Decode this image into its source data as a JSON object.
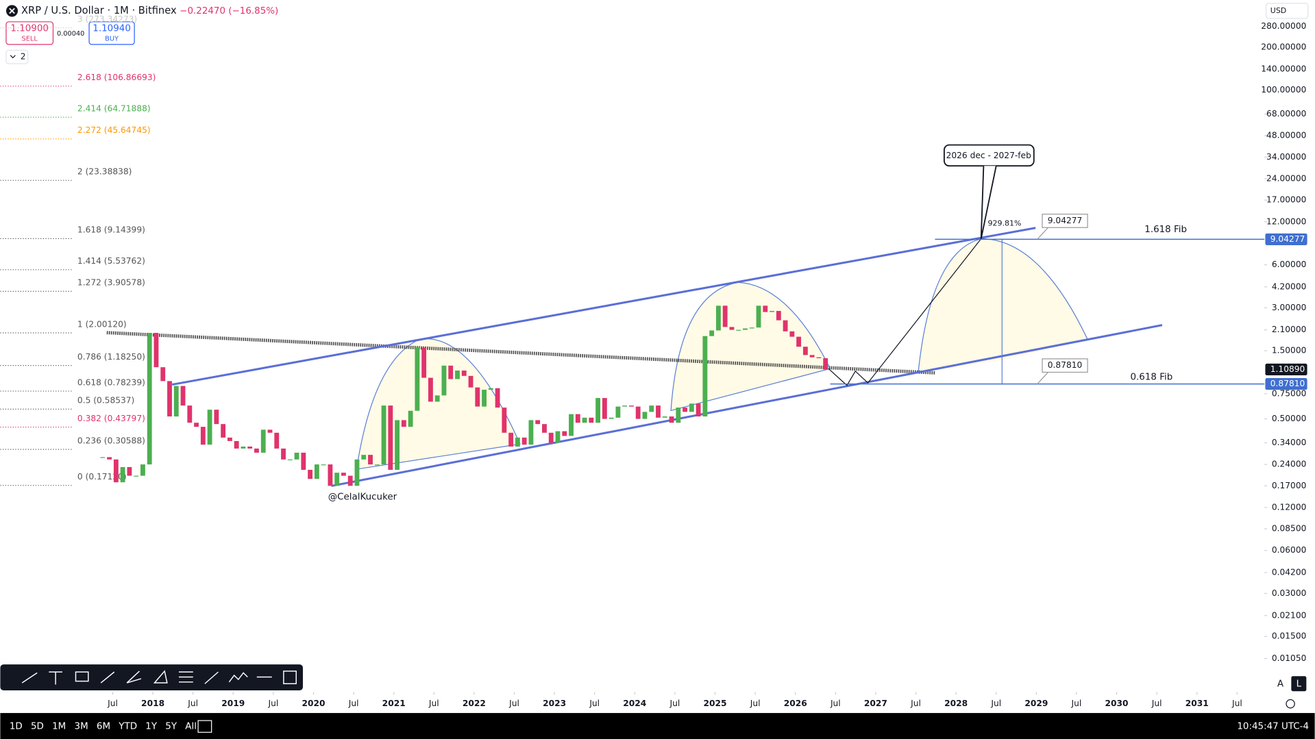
{
  "header": {
    "symbol": "XRP / U.S. Dollar · 1M · Bitfinex",
    "change": "−0.22470 (−16.85%)",
    "sell_price": "1.10900",
    "sell_label": "SELL",
    "spread": "0.00040",
    "buy_price": "1.10940",
    "buy_label": "BUY",
    "indicator_count": "2",
    "currency": "USD"
  },
  "chart_data": {
    "type": "candlestick",
    "log_scale": true,
    "up_color": "#4caf50",
    "down_color": "#e0336b",
    "x": [
      "2017-05",
      "2017-06",
      "2017-07",
      "2017-08",
      "2017-09",
      "2017-10",
      "2017-11",
      "2017-12",
      "2018-01",
      "2018-02",
      "2018-03",
      "2018-04",
      "2018-05",
      "2018-06",
      "2018-07",
      "2018-08",
      "2018-09",
      "2018-10",
      "2018-11",
      "2018-12",
      "2019-01",
      "2019-02",
      "2019-03",
      "2019-04",
      "2019-05",
      "2019-06",
      "2019-07",
      "2019-08",
      "2019-09",
      "2019-10",
      "2019-11",
      "2019-12",
      "2020-01",
      "2020-02",
      "2020-03",
      "2020-04",
      "2020-05",
      "2020-06",
      "2020-07",
      "2020-08",
      "2020-09",
      "2020-10",
      "2020-11",
      "2020-12",
      "2021-01",
      "2021-02",
      "2021-03",
      "2021-04",
      "2021-05",
      "2021-06",
      "2021-07",
      "2021-08",
      "2021-09",
      "2021-10",
      "2021-11",
      "2021-12",
      "2022-01",
      "2022-02",
      "2022-03",
      "2022-04",
      "2022-05",
      "2022-06",
      "2022-07",
      "2022-08",
      "2022-09",
      "2022-10",
      "2022-11",
      "2022-12",
      "2023-01",
      "2023-02",
      "2023-03",
      "2023-04",
      "2023-05",
      "2023-06",
      "2023-07",
      "2023-08",
      "2023-09",
      "2023-10",
      "2023-11",
      "2023-12",
      "2024-01",
      "2024-02",
      "2024-03",
      "2024-04",
      "2024-05",
      "2024-06",
      "2024-07",
      "2024-08",
      "2024-09",
      "2024-10",
      "2024-11",
      "2024-12",
      "2025-01",
      "2025-02",
      "2025-03",
      "2025-04",
      "2025-05",
      "2025-06",
      "2025-07",
      "2025-08",
      "2025-09",
      "2025-10",
      "2025-11",
      "2025-12",
      "2026-01",
      "2026-02",
      "2026-03",
      "2026-04",
      "2026-05"
    ],
    "close": [
      0.27,
      0.26,
      0.18,
      0.23,
      0.2,
      0.2,
      0.24,
      2.0,
      1.15,
      0.92,
      0.52,
      0.85,
      0.62,
      0.47,
      0.44,
      0.33,
      0.58,
      0.46,
      0.37,
      0.35,
      0.31,
      0.32,
      0.31,
      0.29,
      0.42,
      0.4,
      0.31,
      0.26,
      0.26,
      0.29,
      0.22,
      0.19,
      0.24,
      0.24,
      0.17,
      0.21,
      0.2,
      0.17,
      0.26,
      0.28,
      0.24,
      0.24,
      0.62,
      0.22,
      0.49,
      0.44,
      0.57,
      1.58,
      0.97,
      0.66,
      0.73,
      1.18,
      0.95,
      1.09,
      1.0,
      0.83,
      0.61,
      0.8,
      0.82,
      0.6,
      0.4,
      0.32,
      0.37,
      0.33,
      0.49,
      0.46,
      0.4,
      0.34,
      0.41,
      0.38,
      0.54,
      0.47,
      0.51,
      0.47,
      0.7,
      0.5,
      0.51,
      0.61,
      0.62,
      0.61,
      0.5,
      0.56,
      0.62,
      0.51,
      0.52,
      0.47,
      0.6,
      0.56,
      0.64,
      0.52,
      1.9,
      2.08,
      3.1,
      2.2,
      2.1,
      2.1,
      2.15,
      2.18,
      3.1,
      2.8,
      2.85,
      2.45,
      2.05,
      1.88,
      1.6,
      1.4,
      1.35,
      1.33,
      1.1089
    ],
    "ylim": [
      0.0062,
      428
    ],
    "yticks": [
      {
        "value": 280,
        "label": "280.00000"
      },
      {
        "value": 200,
        "label": "200.00000"
      },
      {
        "value": 140,
        "label": "140.00000"
      },
      {
        "value": 100,
        "label": "100.00000"
      },
      {
        "value": 68,
        "label": "68.00000"
      },
      {
        "value": 48,
        "label": "48.00000"
      },
      {
        "value": 34,
        "label": "34.00000"
      },
      {
        "value": 24,
        "label": "24.00000"
      },
      {
        "value": 17,
        "label": "17.00000"
      },
      {
        "value": 12,
        "label": "12.00000"
      },
      {
        "value": 6,
        "label": "6.00000"
      },
      {
        "value": 4.2,
        "label": "4.20000"
      },
      {
        "value": 3,
        "label": "3.00000"
      },
      {
        "value": 2.1,
        "label": "2.10000"
      },
      {
        "value": 1.5,
        "label": "1.50000"
      },
      {
        "value": 0.75,
        "label": "0.75000"
      },
      {
        "value": 0.5,
        "label": "0.50000"
      },
      {
        "value": 0.34,
        "label": "0.34000"
      },
      {
        "value": 0.24,
        "label": "0.24000"
      },
      {
        "value": 0.17,
        "label": "0.17000"
      },
      {
        "value": 0.12,
        "label": "0.12000"
      },
      {
        "value": 0.085,
        "label": "0.08500"
      },
      {
        "value": 0.06,
        "label": "0.06000"
      },
      {
        "value": 0.042,
        "label": "0.04200"
      },
      {
        "value": 0.03,
        "label": "0.03000"
      },
      {
        "value": 0.021,
        "label": "0.02100"
      },
      {
        "value": 0.015,
        "label": "0.01500"
      },
      {
        "value": 0.0105,
        "label": "0.01050"
      }
    ],
    "xlim": [
      2016.1,
      2031.84
    ],
    "xticks": [
      {
        "value": 2017.5,
        "label": "Jul"
      },
      2018,
      {
        "value": 2018.5,
        "label": "Jul"
      },
      2019,
      {
        "value": 2019.5,
        "label": "Jul"
      },
      2020,
      {
        "value": 2020.5,
        "label": "Jul"
      },
      2021,
      {
        "value": 2021.5,
        "label": "Jul"
      },
      2022,
      {
        "value": 2022.5,
        "label": "Jul"
      },
      2023,
      {
        "value": 2023.5,
        "label": "Jul"
      },
      2024,
      {
        "value": 2024.5,
        "label": "Jul"
      },
      2025,
      {
        "value": 2025.5,
        "label": "Jul"
      },
      2026,
      {
        "value": 2026.5,
        "label": "Jul"
      },
      2027,
      {
        "value": 2027.5,
        "label": "Jul"
      },
      2028,
      {
        "value": 2028.5,
        "label": "Jul"
      },
      2029,
      {
        "value": 2029.5,
        "label": "Jul"
      },
      2030,
      {
        "value": 2030.5,
        "label": "Jul"
      },
      2031,
      {
        "value": 2031.5,
        "label": "Jul"
      }
    ],
    "price_badges": [
      {
        "value": 9.04277,
        "label": "9.04277",
        "color": "#3f6fd1"
      },
      {
        "value": 1.1089,
        "label": "1.10890",
        "color": "#131722"
      },
      {
        "value": 0.8781,
        "label": "0.87810",
        "color": "#3f6fd1"
      }
    ],
    "fib_levels": [
      {
        "value": 273.34273,
        "label": "3 (273.34273)",
        "color": "#c9c9c9"
      },
      {
        "value": 106.86693,
        "label": "2.618 (106.86693)",
        "color": "#e0336b"
      },
      {
        "value": 64.71888,
        "label": "2.414 (64.71888)",
        "color": "#4caf50"
      },
      {
        "value": 45.64745,
        "label": "2.272 (45.64745)",
        "color": "#ff9800"
      },
      {
        "value": 23.38838,
        "label": "2 (23.38838)",
        "color": "#555555"
      },
      {
        "value": 9.14399,
        "label": "1.618 (9.14399)",
        "color": "#555555"
      },
      {
        "value": 5.53762,
        "label": "1.414 (5.53762)",
        "color": "#555555"
      },
      {
        "value": 3.90578,
        "label": "1.272 (3.90578)",
        "color": "#555555"
      },
      {
        "value": 2.0012,
        "label": "1 (2.00120)",
        "color": "#555555"
      },
      {
        "value": 1.1825,
        "label": "0.786 (1.18250)",
        "color": "#555555"
      },
      {
        "value": 0.78239,
        "label": "0.618 (0.78239)",
        "color": "#555555"
      },
      {
        "value": 0.58537,
        "label": "0.5 (0.58537)",
        "color": "#555555"
      },
      {
        "value": 0.43797,
        "label": "0.382 (0.43797)",
        "color": "#e0336b"
      },
      {
        "value": 0.30588,
        "label": "0.236 (0.30588)",
        "color": "#555555"
      },
      {
        "value": 0.1712,
        "label": "0 (0.17120)",
        "color": "#555555"
      }
    ],
    "annotations": {
      "callout": "2026 dec - 2027-feb",
      "percent": "929.81%",
      "target": {
        "value": 9.04277,
        "label": "9.04277"
      },
      "support": {
        "value": 0.8781,
        "label": "0.87810"
      },
      "upper_fib": "1.618 Fib",
      "lower_fib": "0.618 Fib",
      "author": "@CelalKucuker"
    }
  },
  "toolbar": {
    "periods": [
      "1D",
      "5D",
      "1M",
      "3M",
      "6M",
      "YTD",
      "1Y",
      "5Y",
      "All"
    ],
    "clock": "10:45:47 UTC-4",
    "scale_auto": "A",
    "scale_log": "L"
  }
}
